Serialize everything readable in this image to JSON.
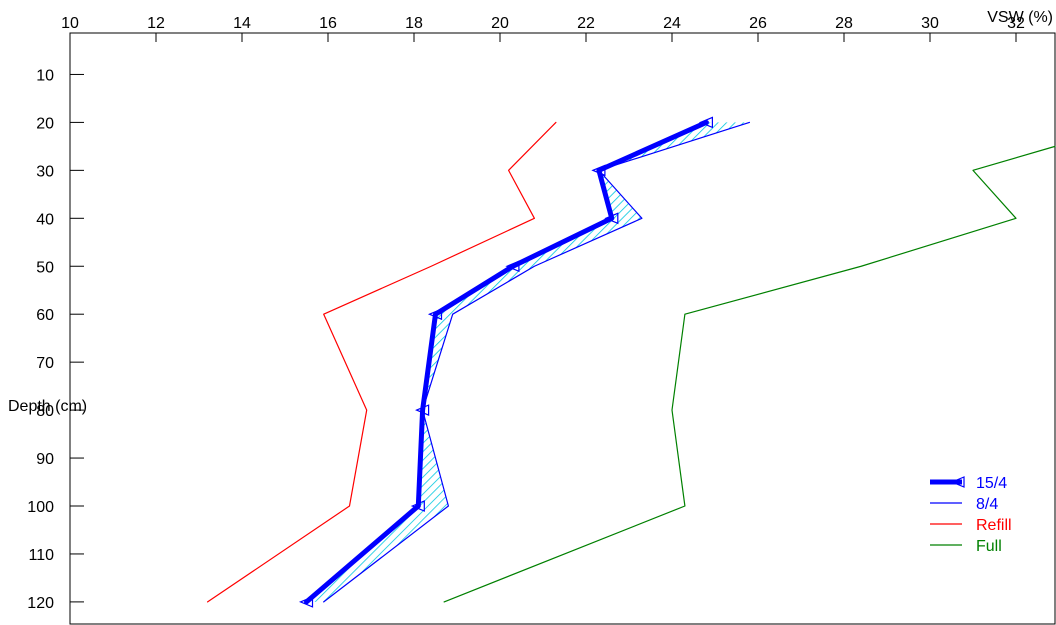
{
  "chart_data": {
    "type": "line",
    "orientation": "profile",
    "xlabel": "VSW (%)",
    "ylabel": "Depth (cm)",
    "xlim": [
      10,
      33
    ],
    "ylim": [
      125,
      5
    ],
    "x_ticks": [
      10,
      12,
      14,
      16,
      18,
      20,
      22,
      24,
      26,
      28,
      30,
      32
    ],
    "y_ticks": [
      10,
      20,
      30,
      40,
      50,
      60,
      70,
      80,
      90,
      100,
      110,
      120
    ],
    "x_axis_position": "top",
    "grid": false,
    "legend_position": "bottom-right",
    "fill_between": [
      "15/4",
      "8/4"
    ],
    "fill_color": "#00c8e0",
    "series": [
      {
        "name": "15/4",
        "color": "#0000ff",
        "style": "thick-with-triangle-markers",
        "depth": [
          20,
          30,
          40,
          50,
          60,
          80,
          100,
          120
        ],
        "vsw": [
          24.8,
          22.3,
          22.6,
          20.3,
          18.5,
          18.2,
          18.1,
          15.5
        ]
      },
      {
        "name": "8/4",
        "color": "#0000ff",
        "style": "thin",
        "depth": [
          20,
          30,
          40,
          50,
          60,
          80,
          100,
          120
        ],
        "vsw": [
          25.8,
          22.3,
          23.3,
          20.8,
          18.9,
          18.2,
          18.8,
          15.9
        ]
      },
      {
        "name": "Refill",
        "color": "#ff0000",
        "style": "thin",
        "depth": [
          20,
          30,
          40,
          50,
          60,
          80,
          100,
          120
        ],
        "vsw": [
          21.3,
          20.2,
          20.8,
          18.4,
          15.9,
          16.9,
          16.5,
          13.2
        ]
      },
      {
        "name": "Full",
        "color": "#008000",
        "style": "thin",
        "depth": [
          25,
          30,
          40,
          50,
          60,
          80,
          100,
          120
        ],
        "vsw": [
          33.0,
          31.0,
          32.0,
          28.4,
          24.3,
          24.0,
          24.3,
          18.7
        ]
      }
    ]
  }
}
